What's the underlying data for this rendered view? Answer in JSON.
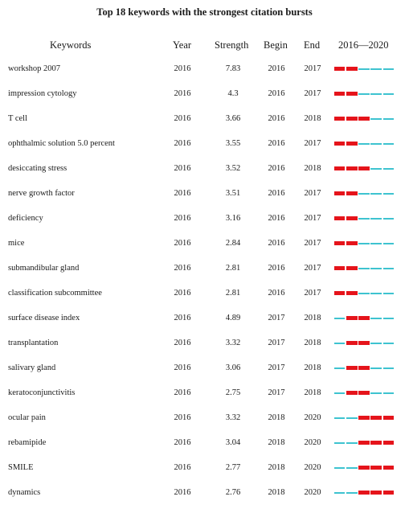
{
  "chart_data": {
    "type": "table",
    "title": "Top 18 keywords with the strongest citation bursts",
    "columns": [
      "Keywords",
      "Year",
      "Strength",
      "Begin",
      "End",
      "2016—2020"
    ],
    "range_start": 2016,
    "range_end": 2020,
    "colors": {
      "burst": "#e5141b",
      "baseline": "#3ec3d0"
    },
    "rows": [
      {
        "keyword": "workshop 2007",
        "year": "2016",
        "strength": "7.83",
        "begin": "2016",
        "end": "2017"
      },
      {
        "keyword": "impression cytology",
        "year": "2016",
        "strength": "4.3",
        "begin": "2016",
        "end": "2017"
      },
      {
        "keyword": "T cell",
        "year": "2016",
        "strength": "3.66",
        "begin": "2016",
        "end": "2018"
      },
      {
        "keyword": "ophthalmic solution 5.0 percent",
        "year": "2016",
        "strength": "3.55",
        "begin": "2016",
        "end": "2017"
      },
      {
        "keyword": "desiccating stress",
        "year": "2016",
        "strength": "3.52",
        "begin": "2016",
        "end": "2018"
      },
      {
        "keyword": "nerve growth factor",
        "year": "2016",
        "strength": "3.51",
        "begin": "2016",
        "end": "2017"
      },
      {
        "keyword": "deficiency",
        "year": "2016",
        "strength": "3.16",
        "begin": "2016",
        "end": "2017"
      },
      {
        "keyword": "mice",
        "year": "2016",
        "strength": "2.84",
        "begin": "2016",
        "end": "2017"
      },
      {
        "keyword": "submandibular gland",
        "year": "2016",
        "strength": "2.81",
        "begin": "2016",
        "end": "2017"
      },
      {
        "keyword": "classification subcommittee",
        "year": "2016",
        "strength": "2.81",
        "begin": "2016",
        "end": "2017"
      },
      {
        "keyword": "surface disease index",
        "year": "2016",
        "strength": "4.89",
        "begin": "2017",
        "end": "2018"
      },
      {
        "keyword": "transplantation",
        "year": "2016",
        "strength": "3.32",
        "begin": "2017",
        "end": "2018"
      },
      {
        "keyword": "salivary gland",
        "year": "2016",
        "strength": "3.06",
        "begin": "2017",
        "end": "2018"
      },
      {
        "keyword": "keratoconjunctivitis",
        "year": "2016",
        "strength": "2.75",
        "begin": "2017",
        "end": "2018"
      },
      {
        "keyword": "ocular pain",
        "year": "2016",
        "strength": "3.32",
        "begin": "2018",
        "end": "2020"
      },
      {
        "keyword": "rebamipide",
        "year": "2016",
        "strength": "3.04",
        "begin": "2018",
        "end": "2020"
      },
      {
        "keyword": "SMILE",
        "year": "2016",
        "strength": "2.77",
        "begin": "2018",
        "end": "2020"
      },
      {
        "keyword": "dynamics",
        "year": "2016",
        "strength": "2.76",
        "begin": "2018",
        "end": "2020"
      }
    ]
  }
}
